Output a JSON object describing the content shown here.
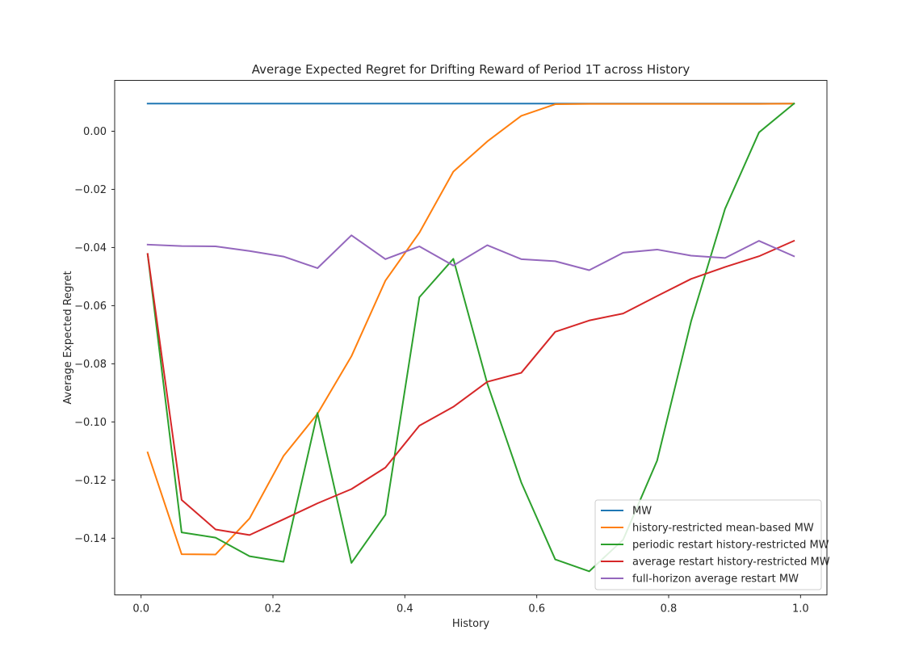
{
  "chart_data": {
    "type": "line",
    "title": "Average Expected Regret for Drifting Reward of Period 1T across History",
    "xlabel": "History",
    "ylabel": "Average Expected Regret",
    "xlim": [
      -0.04,
      1.04
    ],
    "ylim": [
      -0.1595,
      0.0175
    ],
    "xticks": [
      0.0,
      0.2,
      0.4,
      0.6,
      0.8,
      1.0
    ],
    "xtick_labels": [
      "0.0",
      "0.2",
      "0.4",
      "0.6",
      "0.8",
      "1.0"
    ],
    "yticks": [
      0.0,
      -0.02,
      -0.04,
      -0.06,
      -0.08,
      -0.1,
      -0.12,
      -0.14
    ],
    "ytick_labels": [
      "0.00",
      "−0.02",
      "−0.04",
      "−0.06",
      "−0.08",
      "−0.10",
      "−0.12",
      "−0.14"
    ],
    "grid": false,
    "legend_position": "lower-right",
    "x": [
      0.01,
      0.0615,
      0.113,
      0.1645,
      0.216,
      0.2675,
      0.319,
      0.3705,
      0.422,
      0.4735,
      0.525,
      0.5765,
      0.628,
      0.6795,
      0.731,
      0.7825,
      0.834,
      0.8855,
      0.937,
      0.99
    ],
    "series": [
      {
        "name": "MW",
        "color": "#1f77b4",
        "values": [
          0.0095,
          0.0095,
          0.0095,
          0.0095,
          0.0095,
          0.0095,
          0.0095,
          0.0095,
          0.0095,
          0.0095,
          0.0095,
          0.0095,
          0.0095,
          0.0095,
          0.0095,
          0.0095,
          0.0095,
          0.0095,
          0.0095,
          0.0095
        ]
      },
      {
        "name": "history-restricted mean-based MW",
        "color": "#ff7f0e",
        "values": [
          -0.1105,
          -0.1455,
          -0.1456,
          -0.1332,
          -0.1117,
          -0.0972,
          -0.0774,
          -0.0514,
          -0.0349,
          -0.0139,
          -0.0035,
          0.0053,
          0.0093,
          0.0094,
          0.0094,
          0.0094,
          0.0094,
          0.0094,
          0.0094,
          0.0095
        ]
      },
      {
        "name": "periodic restart history-restricted MW",
        "color": "#2ca02c",
        "values": [
          -0.0423,
          -0.138,
          -0.1398,
          -0.1462,
          -0.1481,
          -0.0969,
          -0.1485,
          -0.1319,
          -0.0571,
          -0.0439,
          -0.0868,
          -0.1208,
          -0.1473,
          -0.1514,
          -0.1405,
          -0.1133,
          -0.0654,
          -0.0267,
          -0.0004,
          0.0095
        ]
      },
      {
        "name": "average restart history-restricted MW",
        "color": "#d62728",
        "values": [
          -0.0422,
          -0.1268,
          -0.137,
          -0.1389,
          -0.1335,
          -0.128,
          -0.1231,
          -0.1157,
          -0.1013,
          -0.0948,
          -0.0862,
          -0.0831,
          -0.069,
          -0.0651,
          -0.0627,
          -0.0567,
          -0.0508,
          -0.0467,
          -0.043,
          -0.0377
        ]
      },
      {
        "name": "full-horizon average restart MW",
        "color": "#9467bd",
        "values": [
          -0.039,
          -0.0395,
          -0.0396,
          -0.0412,
          -0.0431,
          -0.0471,
          -0.0358,
          -0.044,
          -0.0396,
          -0.0462,
          -0.0392,
          -0.044,
          -0.0447,
          -0.0478,
          -0.0418,
          -0.0407,
          -0.0428,
          -0.0436,
          -0.0377,
          -0.043
        ]
      }
    ]
  }
}
